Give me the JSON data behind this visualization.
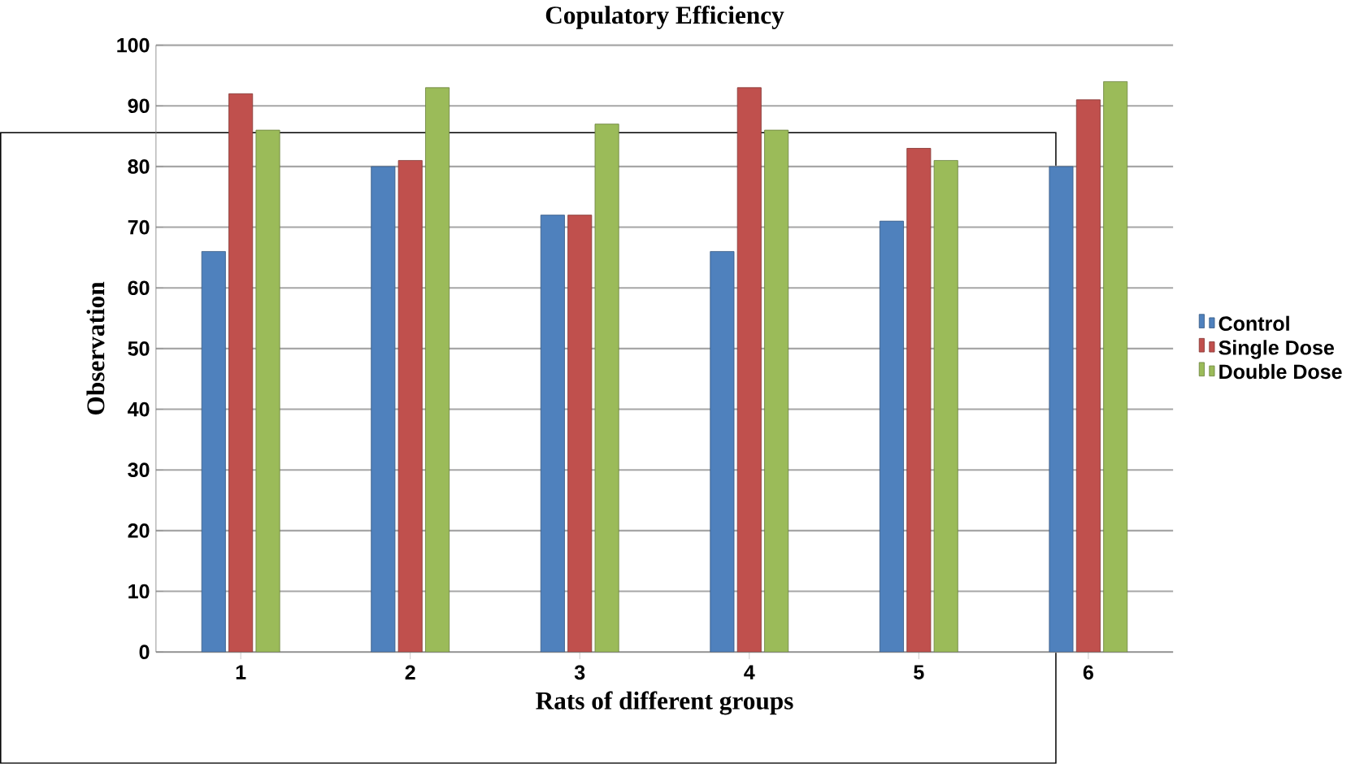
{
  "chart_data": {
    "type": "bar",
    "title": "Copulatory Efficiency",
    "xlabel": "Rats of different groups",
    "ylabel": "Observation",
    "categories": [
      "1",
      "2",
      "3",
      "4",
      "5",
      "6"
    ],
    "series": [
      {
        "name": "Control",
        "color": "#4f81bd",
        "values": [
          66,
          80,
          72,
          66,
          71,
          80
        ]
      },
      {
        "name": "Single Dose",
        "color": "#c0504d",
        "values": [
          92,
          81,
          72,
          93,
          83,
          91
        ]
      },
      {
        "name": "Double Dose",
        "color": "#9bbb59",
        "values": [
          86,
          93,
          87,
          86,
          81,
          94
        ]
      }
    ],
    "ylim": [
      0,
      100
    ],
    "yticks": [
      0,
      10,
      20,
      30,
      40,
      50,
      60,
      70,
      80,
      90,
      100
    ],
    "grid": "y",
    "legend": "right"
  }
}
